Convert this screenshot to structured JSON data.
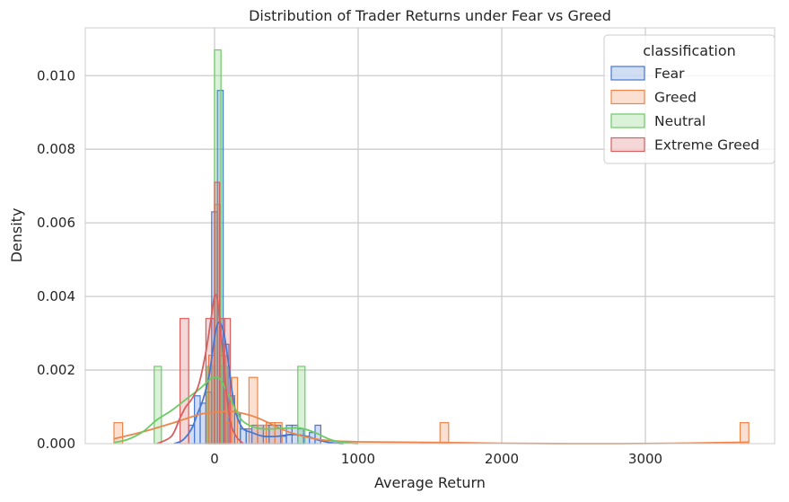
{
  "chart_data": {
    "type": "histogram",
    "title": "Distribution of Trader Returns under Fear vs Greed",
    "xlabel": "Average Return",
    "ylabel": "Density",
    "xlim": [
      -900,
      3900
    ],
    "ylim": [
      0,
      0.0113
    ],
    "xticks": [
      0,
      1000,
      2000,
      3000
    ],
    "xtick_labels": [
      "0",
      "1000",
      "2000",
      "3000"
    ],
    "yticks": [
      0,
      0.002,
      0.004,
      0.006,
      0.008,
      0.01
    ],
    "ytick_labels": [
      "0.000",
      "0.002",
      "0.004",
      "0.006",
      "0.008",
      "0.010"
    ],
    "grid": true,
    "legend": {
      "title": "classification",
      "placement": "top-right"
    },
    "series": [
      {
        "name": "Fear",
        "color": "#4878d0",
        "bins": [
          {
            "x0": -180,
            "x1": -140,
            "y": 0.0005
          },
          {
            "x0": -140,
            "x1": -100,
            "y": 0.0013
          },
          {
            "x0": -100,
            "x1": -60,
            "y": 0.0011
          },
          {
            "x0": -60,
            "x1": -20,
            "y": 0.0014
          },
          {
            "x0": -20,
            "x1": 20,
            "y": 0.0063
          },
          {
            "x0": 20,
            "x1": 60,
            "y": 0.0096
          },
          {
            "x0": 60,
            "x1": 100,
            "y": 0.0027
          },
          {
            "x0": 100,
            "x1": 140,
            "y": 0.0013
          },
          {
            "x0": 140,
            "x1": 180,
            "y": 0.0008
          },
          {
            "x0": 180,
            "x1": 220,
            "y": 0.0004
          },
          {
            "x0": 220,
            "x1": 260,
            "y": 0.0004
          },
          {
            "x0": 260,
            "x1": 300,
            "y": 0.0005
          },
          {
            "x0": 300,
            "x1": 340,
            "y": 0.0005
          },
          {
            "x0": 340,
            "x1": 380,
            "y": 0.0005
          },
          {
            "x0": 380,
            "x1": 420,
            "y": 0.0005
          },
          {
            "x0": 420,
            "x1": 460,
            "y": 0.0005
          },
          {
            "x0": 460,
            "x1": 500,
            "y": 0.0002
          },
          {
            "x0": 500,
            "x1": 540,
            "y": 0.0005
          },
          {
            "x0": 540,
            "x1": 580,
            "y": 0.0005
          },
          {
            "x0": 580,
            "x1": 620,
            "y": 0.0004
          },
          {
            "x0": 620,
            "x1": 660,
            "y": 0.0002
          },
          {
            "x0": 660,
            "x1": 700,
            "y": 0.0003
          },
          {
            "x0": 700,
            "x1": 740,
            "y": 0.0005
          }
        ],
        "kde": [
          [
            -280,
            0
          ],
          [
            -220,
            0.0001
          ],
          [
            -160,
            0.0004
          ],
          [
            -120,
            0.0008
          ],
          [
            -80,
            0.0012
          ],
          [
            -40,
            0.0018
          ],
          [
            -10,
            0.0026
          ],
          [
            10,
            0.0031
          ],
          [
            30,
            0.0033
          ],
          [
            50,
            0.0032
          ],
          [
            70,
            0.0029
          ],
          [
            100,
            0.0021
          ],
          [
            130,
            0.0012
          ],
          [
            160,
            0.0007
          ],
          [
            200,
            0.0004
          ],
          [
            260,
            0.0003
          ],
          [
            340,
            0.0002
          ],
          [
            440,
            0.0002
          ],
          [
            540,
            0.00025
          ],
          [
            640,
            0.0002
          ],
          [
            720,
            0.0001
          ],
          [
            800,
            3e-05
          ],
          [
            900,
            0
          ]
        ]
      },
      {
        "name": "Greed",
        "color": "#ee854a",
        "bins": [
          {
            "x0": -700,
            "x1": -640,
            "y": 0.00057
          },
          {
            "x0": -40,
            "x1": 0,
            "y": 0.0024
          },
          {
            "x0": 0,
            "x1": 40,
            "y": 0.0065
          },
          {
            "x0": 40,
            "x1": 80,
            "y": 0.0024
          },
          {
            "x0": 80,
            "x1": 120,
            "y": 0.00057
          },
          {
            "x0": 120,
            "x1": 160,
            "y": 0.0018
          },
          {
            "x0": 240,
            "x1": 300,
            "y": 0.0018
          },
          {
            "x0": 300,
            "x1": 360,
            "y": 0.0005
          },
          {
            "x0": 360,
            "x1": 420,
            "y": 0.00057
          },
          {
            "x0": 420,
            "x1": 470,
            "y": 0.00057
          },
          {
            "x0": 1570,
            "x1": 1630,
            "y": 0.00057
          },
          {
            "x0": 3660,
            "x1": 3720,
            "y": 0.00057
          }
        ],
        "kde": [
          [
            -700,
            0.00013
          ],
          [
            -500,
            0.00032
          ],
          [
            -300,
            0.00055
          ],
          [
            -100,
            0.0008
          ],
          [
            0,
            0.00085
          ],
          [
            100,
            0.00088
          ],
          [
            200,
            0.00082
          ],
          [
            300,
            0.0007
          ],
          [
            400,
            0.00052
          ],
          [
            500,
            0.00034
          ],
          [
            600,
            0.00022
          ],
          [
            700,
            0.00013
          ],
          [
            800,
            8e-05
          ],
          [
            1000,
            5e-05
          ],
          [
            1300,
            4e-05
          ],
          [
            1600,
            3e-05
          ],
          [
            2000,
            1e-05
          ],
          [
            2600,
            0
          ],
          [
            3200,
            1e-05
          ],
          [
            3720,
            4e-05
          ]
        ]
      },
      {
        "name": "Neutral",
        "color": "#6acc64",
        "bins": [
          {
            "x0": -420,
            "x1": -370,
            "y": 0.0021
          },
          {
            "x0": -50,
            "x1": 0,
            "y": 0.0021
          },
          {
            "x0": 0,
            "x1": 45,
            "y": 0.0107
          },
          {
            "x0": 45,
            "x1": 90,
            "y": 0.0021
          },
          {
            "x0": 580,
            "x1": 630,
            "y": 0.0021
          }
        ],
        "kde": [
          [
            -700,
            3e-05
          ],
          [
            -600,
            0.00012
          ],
          [
            -500,
            0.00032
          ],
          [
            -400,
            0.00065
          ],
          [
            -300,
            0.0009
          ],
          [
            -200,
            0.0012
          ],
          [
            -100,
            0.0015
          ],
          [
            -30,
            0.00175
          ],
          [
            0,
            0.0018
          ],
          [
            40,
            0.00175
          ],
          [
            100,
            0.0013
          ],
          [
            150,
            0.0009
          ],
          [
            200,
            0.0006
          ],
          [
            300,
            0.00042
          ],
          [
            400,
            0.0004
          ],
          [
            500,
            0.00042
          ],
          [
            600,
            0.00042
          ],
          [
            700,
            0.0003
          ],
          [
            800,
            0.00012
          ],
          [
            900,
            3e-05
          ],
          [
            1000,
            0
          ]
        ]
      },
      {
        "name": "Extreme Greed",
        "color": "#d65f5f",
        "bins": [
          {
            "x0": -240,
            "x1": -180,
            "y": 0.0034
          },
          {
            "x0": -60,
            "x1": 0,
            "y": 0.0034
          },
          {
            "x0": 0,
            "x1": 35,
            "y": 0.0071
          },
          {
            "x0": 35,
            "x1": 70,
            "y": 0.0034
          },
          {
            "x0": 70,
            "x1": 110,
            "y": 0.0034
          }
        ],
        "kde": [
          [
            -400,
            0
          ],
          [
            -300,
            0.0002
          ],
          [
            -240,
            0.0007
          ],
          [
            -200,
            0.001
          ],
          [
            -160,
            0.0012
          ],
          [
            -110,
            0.0016
          ],
          [
            -60,
            0.0025
          ],
          [
            -20,
            0.0035
          ],
          [
            0,
            0.004
          ],
          [
            20,
            0.0039
          ],
          [
            50,
            0.0028
          ],
          [
            80,
            0.0015
          ],
          [
            110,
            0.0006
          ],
          [
            150,
            0.0002
          ],
          [
            200,
            0
          ]
        ]
      }
    ]
  }
}
